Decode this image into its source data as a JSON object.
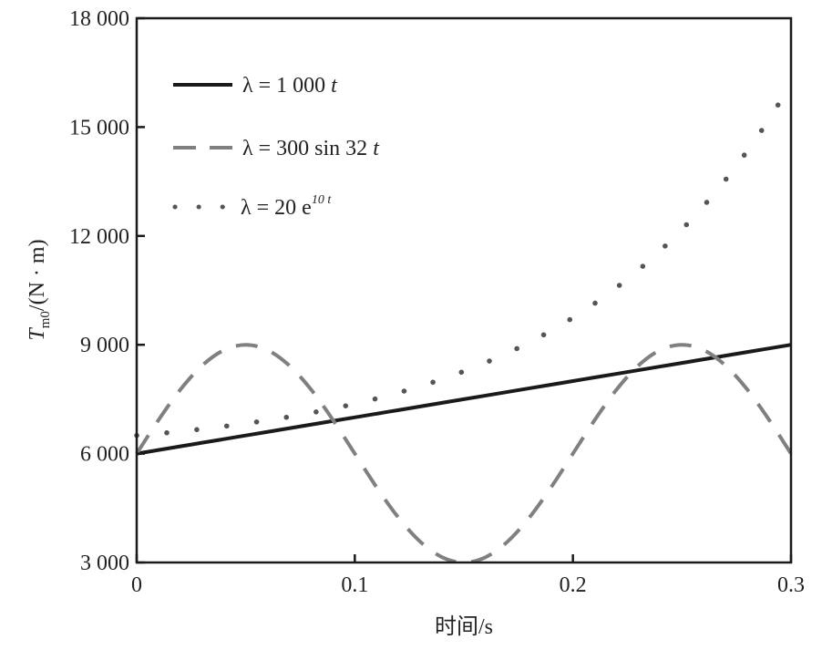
{
  "chart_data": {
    "type": "line",
    "xlabel": "时间/s",
    "ylabel": {
      "main": "T",
      "sub": "m0",
      "unit": "/(N · m)"
    },
    "xlim": [
      0,
      0.3
    ],
    "ylim": [
      3000,
      18000
    ],
    "xticks": [
      0,
      0.1,
      0.2,
      0.3
    ],
    "xtick_labels": [
      "0",
      "0.1",
      "0.2",
      "0.3"
    ],
    "yticks": [
      3000,
      6000,
      9000,
      12000,
      15000,
      18000
    ],
    "ytick_labels": [
      "3 000",
      "6 000",
      "9 000",
      "12 000",
      "15 000",
      "18 000"
    ],
    "grid": false,
    "legend_position": "top-left",
    "x": [
      0,
      0.01,
      0.02,
      0.03,
      0.04,
      0.05,
      0.06,
      0.07,
      0.08,
      0.09,
      0.1,
      0.11,
      0.12,
      0.13,
      0.14,
      0.15,
      0.16,
      0.17,
      0.18,
      0.19,
      0.2,
      0.21,
      0.22,
      0.23,
      0.24,
      0.25,
      0.26,
      0.27,
      0.28,
      0.29,
      0.3
    ],
    "series": [
      {
        "name": "λ = 1 000 t",
        "legend": {
          "lhs": "λ = 1 000 ",
          "var": "t"
        },
        "style": "solid",
        "color": "#1a1a1a",
        "values": [
          6000,
          6100,
          6200,
          6300,
          6400,
          6500,
          6600,
          6700,
          6800,
          6900,
          7000,
          7100,
          7200,
          7300,
          7400,
          7500,
          7600,
          7700,
          7800,
          7900,
          8000,
          8100,
          8200,
          8300,
          8400,
          8500,
          8600,
          8700,
          8800,
          8900,
          9000
        ]
      },
      {
        "name": "λ = 300 sin 32 t",
        "legend": {
          "lhs": "λ = 300 sin 32 ",
          "var": "t"
        },
        "style": "dashed",
        "color": "#808080",
        "values": [
          6000,
          6927,
          7763,
          8427,
          8853,
          9000,
          8853,
          8427,
          7763,
          6927,
          6000,
          5073,
          4237,
          3573,
          3147,
          3000,
          3147,
          3573,
          4237,
          5073,
          6000,
          6927,
          7763,
          8427,
          8853,
          9000,
          8853,
          8427,
          7763,
          6927,
          6000
        ]
      },
      {
        "name": "λ = 20 e^10t",
        "legend": {
          "lhs": "λ = 20 e",
          "sup": "10 t"
        },
        "style": "dotted",
        "color": "#555555",
        "values": [
          6500,
          6553,
          6612,
          6678,
          6750,
          6830,
          6918,
          7015,
          7123,
          7242,
          7373,
          7518,
          7679,
          7856,
          8052,
          8269,
          8508,
          8773,
          9065,
          9388,
          9746,
          10140,
          10577,
          11059,
          11592,
          12181,
          12832,
          13551,
          14346,
          15224,
          16196
        ]
      }
    ]
  }
}
